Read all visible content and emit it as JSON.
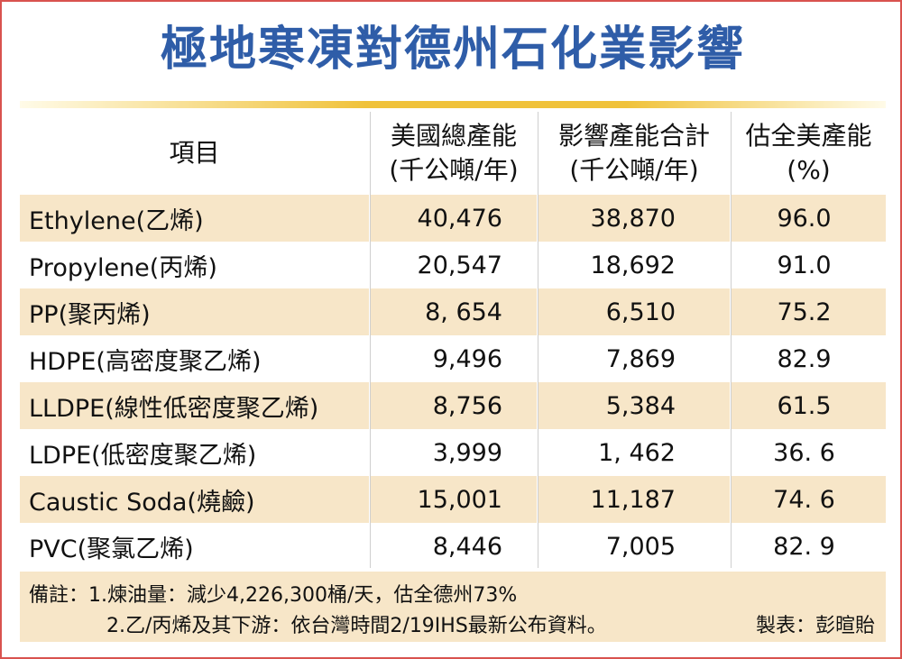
{
  "title": "極地寒凍對德州石化業影響",
  "table": {
    "headers": [
      {
        "line1": "項目",
        "line2": ""
      },
      {
        "line1": "美國總產能",
        "line2": "(千公噸/年)"
      },
      {
        "line1": "影響產能合計",
        "line2": "(千公噸/年)"
      },
      {
        "line1": "估全美產能",
        "line2": "(%)"
      }
    ],
    "rows": [
      {
        "item": "Ethylene(乙烯)",
        "total": "40,476",
        "affected": "38,870",
        "pct": "96.0"
      },
      {
        "item": "Propylene(丙烯)",
        "total": "20,547",
        "affected": "18,692",
        "pct": "91.0"
      },
      {
        "item": "PP(聚丙烯)",
        "total": "8, 654",
        "affected": "6,510",
        "pct": "75.2"
      },
      {
        "item": "HDPE(高密度聚乙烯)",
        "total": "9,496",
        "affected": "7,869",
        "pct": "82.9"
      },
      {
        "item": "LLDPE(線性低密度聚乙烯)",
        "total": "8,756",
        "affected": "5,384",
        "pct": "61.5"
      },
      {
        "item": "LDPE(低密度聚乙烯)",
        "total": "3,999",
        "affected": "1, 462",
        "pct": "36. 6"
      },
      {
        "item": "Caustic Soda(燒鹼)",
        "total": "15,001",
        "affected": "11,187",
        "pct": "74. 6"
      },
      {
        "item": "PVC(聚氯乙烯)",
        "total": "8,446",
        "affected": "7,005",
        "pct": "82. 9"
      }
    ]
  },
  "notes": {
    "line1": "備註：1.煉油量：減少4,226,300桶/天，估全德州73%",
    "line2": "2.乙/丙烯及其下游：依台灣時間2/19IHS最新公布資料。",
    "credit": "製表：彭暄貽"
  },
  "colors": {
    "title": "#2f5da8",
    "row_shade": "#f7e6c8",
    "rule": "#f0c23a",
    "frame": "#d9534f"
  }
}
